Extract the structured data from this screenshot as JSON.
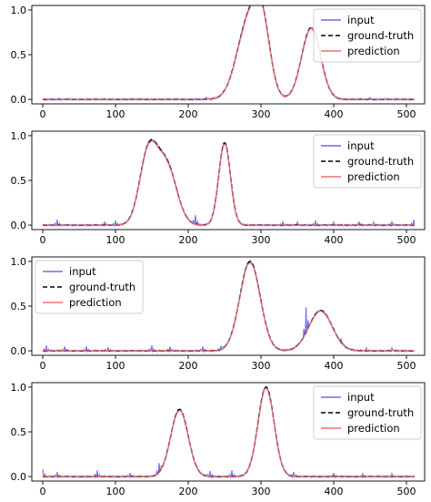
{
  "legend_labels": {
    "input": "input",
    "ground_truth": "ground-truth",
    "prediction": "prediction"
  },
  "colors": {
    "input": "#6b6bf0",
    "ground_truth": "#000000",
    "prediction": "#f07070"
  },
  "chart_data": [
    {
      "type": "line",
      "xlim": [
        -15,
        525
      ],
      "ylim": [
        -0.05,
        1.05
      ],
      "xticks": [
        0,
        100,
        200,
        300,
        400,
        500
      ],
      "xtick_labels": [
        "0",
        "100",
        "200",
        "300",
        "400",
        "500"
      ],
      "yticks": [
        0,
        0.5,
        1.0
      ],
      "ytick_labels": [
        "0.0",
        "0.5",
        "1.0"
      ],
      "legend_position": "top-right",
      "gaussians": [
        {
          "center": 283,
          "height": 0.86,
          "sigma": 16
        },
        {
          "center": 302,
          "height": 0.64,
          "sigma": 11
        },
        {
          "center": 369,
          "height": 0.8,
          "sigma": 13
        }
      ],
      "noise_points": [
        [
          225,
          0.02
        ],
        [
          450,
          0.02
        ],
        [
          470,
          0.01
        ]
      ],
      "series": [
        {
          "name": "input",
          "style": "solid"
        },
        {
          "name": "ground-truth",
          "style": "dashed"
        },
        {
          "name": "prediction",
          "style": "solid"
        }
      ]
    },
    {
      "type": "line",
      "xlim": [
        -15,
        525
      ],
      "ylim": [
        -0.05,
        1.05
      ],
      "xticks": [
        0,
        100,
        200,
        300,
        400,
        500
      ],
      "xtick_labels": [
        "0",
        "100",
        "200",
        "300",
        "400",
        "500"
      ],
      "yticks": [
        0,
        0.5,
        1.0
      ],
      "ytick_labels": [
        "0.0",
        "0.5",
        "1.0"
      ],
      "legend_position": "top-right",
      "gaussians": [
        {
          "center": 145,
          "height": 0.78,
          "sigma": 12
        },
        {
          "center": 170,
          "height": 0.66,
          "sigma": 14
        },
        {
          "center": 250,
          "height": 0.92,
          "sigma": 8
        }
      ],
      "noise_points": [
        [
          20,
          0.06
        ],
        [
          85,
          0.04
        ],
        [
          100,
          0.05
        ],
        [
          210,
          0.1
        ],
        [
          330,
          0.04
        ],
        [
          350,
          0.03
        ],
        [
          375,
          0.05
        ],
        [
          400,
          0.03
        ],
        [
          435,
          0.04
        ],
        [
          455,
          0.03
        ],
        [
          480,
          0.04
        ],
        [
          510,
          0.06
        ]
      ],
      "series": [
        {
          "name": "input",
          "style": "solid"
        },
        {
          "name": "ground-truth",
          "style": "dashed"
        },
        {
          "name": "prediction",
          "style": "solid"
        }
      ]
    },
    {
      "type": "line",
      "xlim": [
        -15,
        525
      ],
      "ylim": [
        -0.05,
        1.05
      ],
      "xticks": [
        0,
        100,
        200,
        300,
        400,
        500
      ],
      "xtick_labels": [
        "0",
        "100",
        "200",
        "300",
        "400",
        "500"
      ],
      "yticks": [
        0,
        0.5,
        1.0
      ],
      "ytick_labels": [
        "0.0",
        "0.5",
        "1.0"
      ],
      "legend_position": "top-left",
      "gaussians": [
        {
          "center": 285,
          "height": 1.0,
          "sigma": 14
        },
        {
          "center": 382,
          "height": 0.45,
          "sigma": 16
        }
      ],
      "noise_points": [
        [
          5,
          0.06
        ],
        [
          30,
          0.05
        ],
        [
          60,
          0.05
        ],
        [
          90,
          0.04
        ],
        [
          150,
          0.06
        ],
        [
          175,
          0.05
        ],
        [
          220,
          0.05
        ],
        [
          245,
          0.04
        ],
        [
          362,
          0.28
        ],
        [
          410,
          0.04
        ],
        [
          445,
          0.03
        ],
        [
          480,
          0.03
        ]
      ],
      "series": [
        {
          "name": "input",
          "style": "solid"
        },
        {
          "name": "ground-truth",
          "style": "dashed"
        },
        {
          "name": "prediction",
          "style": "solid"
        }
      ]
    },
    {
      "type": "line",
      "xlim": [
        -15,
        525
      ],
      "ylim": [
        -0.05,
        1.05
      ],
      "xticks": [
        0,
        100,
        200,
        300,
        400,
        500
      ],
      "xtick_labels": [
        "0",
        "100",
        "200",
        "300",
        "400",
        "500"
      ],
      "yticks": [
        0,
        0.5,
        1.0
      ],
      "ytick_labels": [
        "0.0",
        "0.5",
        "1.0"
      ],
      "legend_position": "top-right",
      "gaussians": [
        {
          "center": 188,
          "height": 0.75,
          "sigma": 12
        },
        {
          "center": 307,
          "height": 1.0,
          "sigma": 11
        }
      ],
      "noise_points": [
        [
          0,
          0.08
        ],
        [
          20,
          0.05
        ],
        [
          75,
          0.07
        ],
        [
          120,
          0.04
        ],
        [
          160,
          0.1
        ],
        [
          230,
          0.06
        ],
        [
          260,
          0.07
        ],
        [
          345,
          0.05
        ],
        [
          400,
          0.04
        ],
        [
          440,
          0.03
        ],
        [
          480,
          0.03
        ]
      ],
      "series": [
        {
          "name": "input",
          "style": "solid"
        },
        {
          "name": "ground-truth",
          "style": "dashed"
        },
        {
          "name": "prediction",
          "style": "solid"
        }
      ]
    }
  ]
}
